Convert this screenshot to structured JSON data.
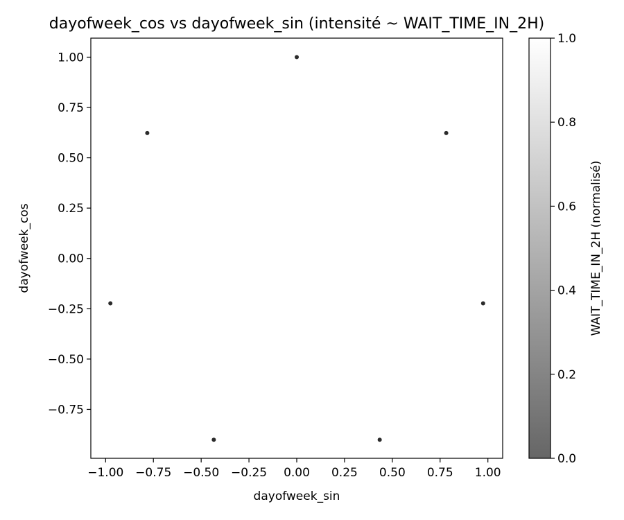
{
  "chart_data": {
    "type": "scatter",
    "title": "dayofweek_cos vs dayofweek_sin (intensité ~ WAIT_TIME_IN_2H)",
    "xlabel": "dayofweek_sin",
    "ylabel": "dayofweek_cos",
    "xlim": [
      -1.0773,
      1.0773
    ],
    "ylim": [
      -0.993,
      1.0945
    ],
    "xticks": [
      -1.0,
      -0.75,
      -0.5,
      -0.25,
      0.0,
      0.25,
      0.5,
      0.75,
      1.0
    ],
    "xtick_labels": [
      "−1.00",
      "−0.75",
      "−0.50",
      "−0.25",
      "0.00",
      "0.25",
      "0.50",
      "0.75",
      "1.00"
    ],
    "yticks": [
      -0.75,
      -0.5,
      -0.25,
      0.0,
      0.25,
      0.5,
      0.75,
      1.0
    ],
    "ytick_labels": [
      "−0.75",
      "−0.50",
      "−0.25",
      "0.00",
      "0.25",
      "0.50",
      "0.75",
      "1.00"
    ],
    "grid": false,
    "points": [
      {
        "x": 0.0,
        "y": 1.0
      },
      {
        "x": 0.782,
        "y": 0.623
      },
      {
        "x": -0.782,
        "y": 0.623
      },
      {
        "x": 0.975,
        "y": -0.223
      },
      {
        "x": -0.975,
        "y": -0.223
      },
      {
        "x": 0.434,
        "y": -0.901
      },
      {
        "x": -0.434,
        "y": -0.901
      }
    ],
    "point_color": "#2b2b2b",
    "colorbar": {
      "label": "WAIT_TIME_IN_2H (normalisé)",
      "range": [
        0.0,
        1.0
      ],
      "ticks": [
        0.0,
        0.2,
        0.4,
        0.6,
        0.8,
        1.0
      ],
      "tick_labels": [
        "0.0",
        "0.2",
        "0.4",
        "0.6",
        "0.8",
        "1.0"
      ],
      "color_min": "#666666",
      "color_max": "#ffffff"
    }
  }
}
